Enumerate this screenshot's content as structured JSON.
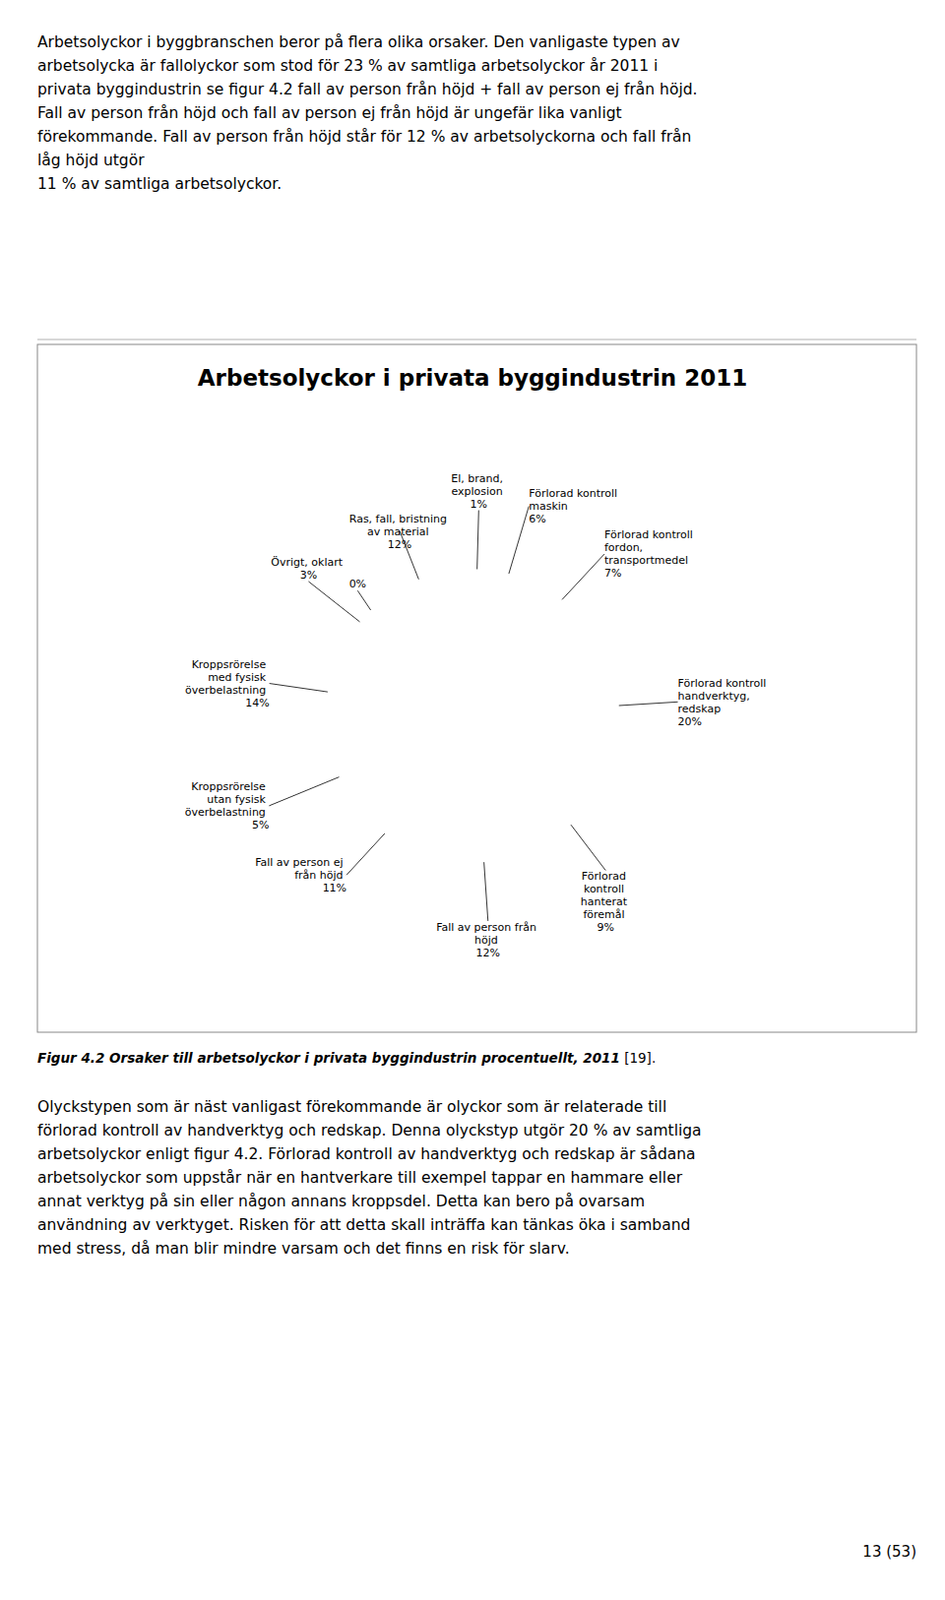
{
  "para1_lines": [
    "Arbetsolyckor i byggbranschen beror på flera olika orsaker. Den vanligaste typen av",
    "arbetsolycka är fallolyckor som stod för 23 % av samtliga arbetsolyckor år 2011 i",
    "privata byggindustrin se figur 4.2 fall av person från höjd + fall av person ej från höjd.",
    "Fall av person från höjd och fall av person ej från höjd är ungefär lika vanligt",
    "förekommande. Fall av person från höjd står för 12 % av arbetsolyckorna och fall från",
    "låg höjd utgör",
    "11 % av samtliga arbetsolyckor."
  ],
  "chart_data": {
    "type": "pie",
    "title": "Arbetsolyckor i privata byggindustrin 2011",
    "categories": [
      "El, brand,\nexplosion",
      "Förlorad kontroll\nmaskin",
      "Förlorad kontroll\nfordon,\ntransportmedel",
      "Förlorad kontroll\nhandverktyg,\nredskap",
      "Förlorad\nkontroll\nhanterat\nföremål",
      "Fall av person från\nhöjd",
      "Fall av person ej\nfrån höjd",
      "Kroppsrörelse\nutan fysisk\növerbelastning",
      "Kroppsrörelse\nmed fysisk\növerbelastning",
      "Övrigt, oklart",
      null,
      "Ras, fall, bristning\nav material"
    ],
    "values": [
      1,
      6,
      7,
      20,
      9,
      12,
      11,
      5,
      14,
      3,
      0.5,
      12
    ],
    "value_labels": [
      "1%",
      "6%",
      "7%",
      "20%",
      "9%",
      "12%",
      "11%",
      "5%",
      "14%",
      "3%",
      "0%",
      "12%"
    ],
    "data_labels": true,
    "color": "white"
  },
  "caption_italic": "Figur 4.2 Orsaker till arbetsolyckor i privata byggindustrin procentuellt, 2011",
  "caption_normal": " [19].",
  "para2_lines": [
    "Olyckstypen som är näst vanligast förekommande är olyckor som är relaterade till",
    "förlorad kontroll av handverktyg och redskap. Denna olyckstyp utgör 20 % av samtliga",
    "arbetsolyckor enligt figur 4.2. Förlorad kontroll av handverktyg och redskap är sådana",
    "arbetsolyckor som uppstår när en hantverkare till exempel tappar en hammare eller",
    "annat verktyg på sin eller någon annans kroppsdel. Detta kan bero på ovarsam",
    "användning av verktyget. Risken för att detta skall inträffa kan tänkas öka i samband",
    "med stress, då man blir mindre varsam och det finns en risk för slarv."
  ],
  "page_number": "13 (53)"
}
